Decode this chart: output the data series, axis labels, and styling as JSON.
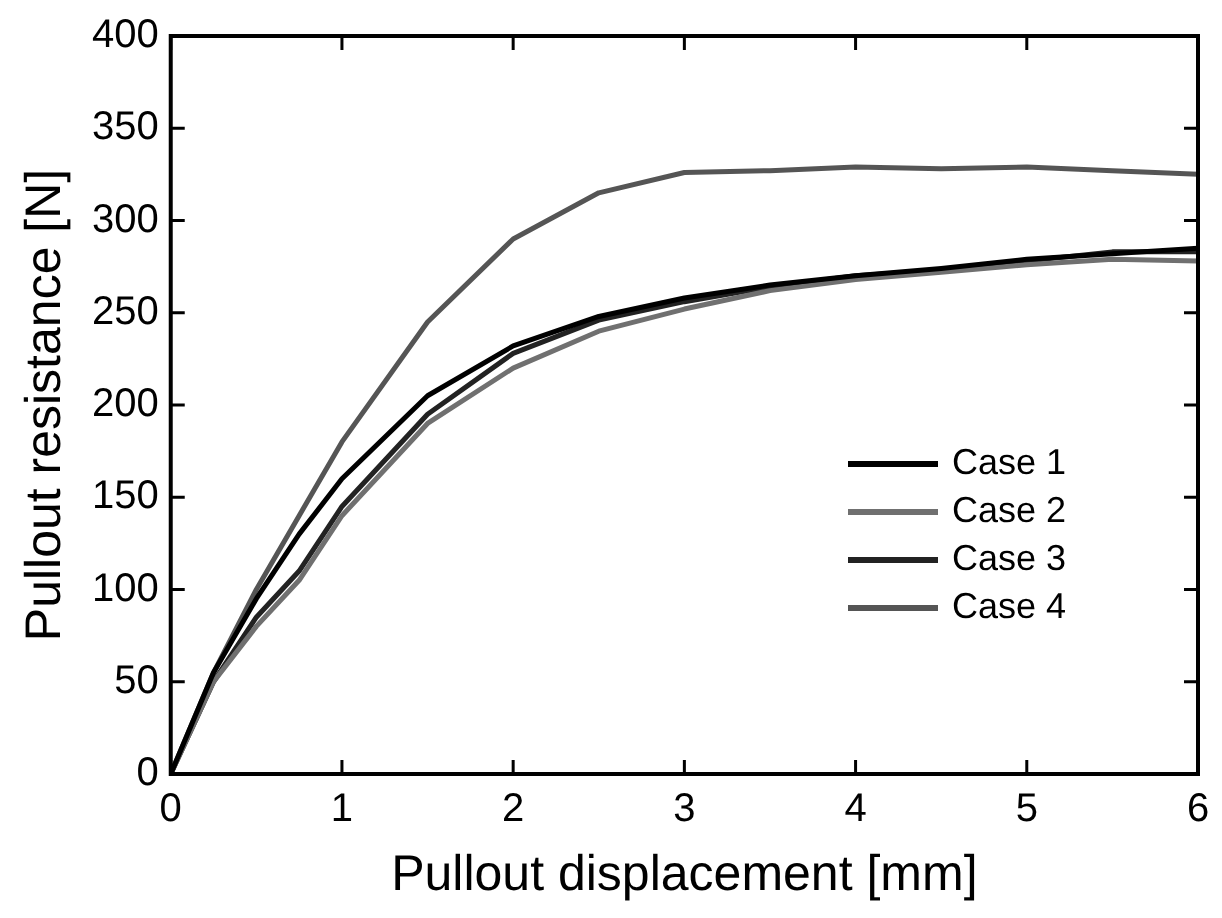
{
  "chart_data": {
    "type": "line",
    "xlabel": "Pullout displacement [mm]",
    "ylabel": "Pullout resistance [N]",
    "x": [
      0,
      0.25,
      0.5,
      0.75,
      1,
      1.5,
      2,
      2.5,
      3,
      3.5,
      4,
      4.5,
      5,
      5.5,
      6
    ],
    "xlim": [
      0,
      6
    ],
    "xticks": [
      0,
      1,
      2,
      3,
      4,
      5,
      6
    ],
    "ylim": [
      0,
      400
    ],
    "yticks": [
      0,
      50,
      100,
      150,
      200,
      250,
      300,
      350,
      400
    ],
    "grid": false,
    "legend": "right",
    "marker": "none",
    "line_style": "solid",
    "series": [
      {
        "name": "Case 1",
        "color": "#000000",
        "values": [
          0,
          55,
          95,
          130,
          160,
          205,
          232,
          248,
          258,
          265,
          270,
          274,
          279,
          282,
          285
        ]
      },
      {
        "name": "Case 2",
        "color": "#707070",
        "values": [
          0,
          50,
          80,
          105,
          140,
          190,
          220,
          240,
          252,
          262,
          268,
          272,
          276,
          279,
          278
        ]
      },
      {
        "name": "Case 3",
        "color": "#222222",
        "values": [
          0,
          50,
          85,
          110,
          145,
          195,
          228,
          246,
          256,
          264,
          270,
          273,
          278,
          283,
          283
        ]
      },
      {
        "name": "Case 4",
        "color": "#555555",
        "values": [
          0,
          55,
          100,
          140,
          180,
          245,
          290,
          315,
          326,
          327,
          329,
          328,
          329,
          327,
          325
        ]
      }
    ]
  }
}
